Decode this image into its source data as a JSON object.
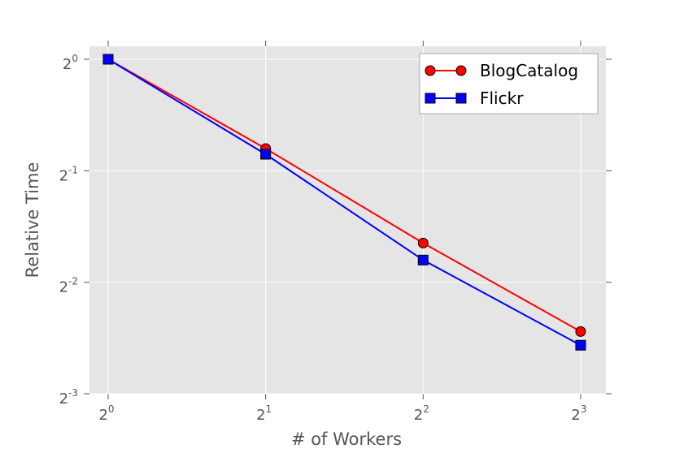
{
  "chart_data": {
    "type": "line",
    "x_label": "# of Workers",
    "y_label": "Relative Time",
    "x": [
      1,
      2,
      4,
      8
    ],
    "series": [
      {
        "name": "BlogCatalog",
        "color": "#ff0000",
        "marker": "circle",
        "values": [
          1,
          0.574,
          0.319,
          0.184
        ]
      },
      {
        "name": "Flickr",
        "color": "#0000ff",
        "marker": "square",
        "values": [
          1,
          0.554,
          0.287,
          0.169
        ]
      }
    ],
    "xscale": "log2",
    "yscale": "log2",
    "xlim": [
      0.921,
      8.94
    ],
    "ylim": [
      0.125,
      1.084
    ],
    "xticks": [
      {
        "value": 1,
        "label": "2",
        "exponent": "0"
      },
      {
        "value": 2,
        "label": "2",
        "exponent": "1"
      },
      {
        "value": 4,
        "label": "2",
        "exponent": "2"
      },
      {
        "value": 8,
        "label": "2",
        "exponent": "3"
      }
    ],
    "yticks": [
      {
        "value": 1,
        "label": "2",
        "exponent": "0"
      },
      {
        "value": 0.5,
        "label": "2",
        "exponent": "-1"
      },
      {
        "value": 0.25,
        "label": "2",
        "exponent": "-2"
      },
      {
        "value": 0.125,
        "label": "2",
        "exponent": "-3"
      }
    ],
    "grid": true,
    "legend": "upper right"
  }
}
